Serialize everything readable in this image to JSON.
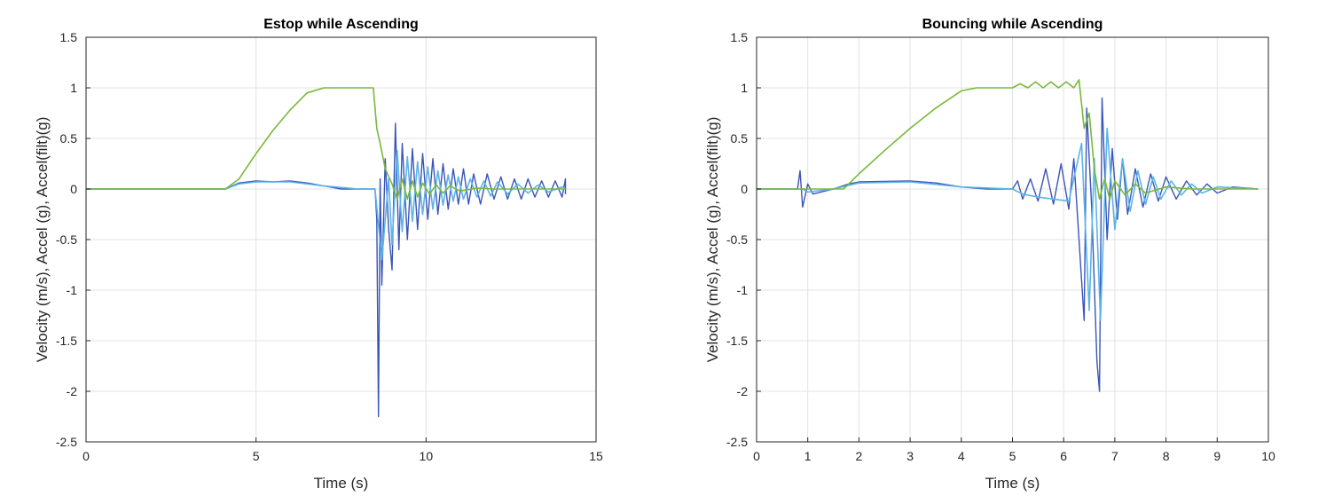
{
  "colors": {
    "raw_accel": "#3a55b8",
    "filtered_accel": "#5ab4e8",
    "velocity": "#7ab83a"
  },
  "chart_data": [
    {
      "type": "line",
      "title": "Estop while Ascending",
      "xlabel": "Time (s)",
      "ylabel": "Velocity (m/s), Accel (g), Accel(filt)(g)",
      "xlim": [
        0,
        15
      ],
      "ylim": [
        -2.5,
        1.5
      ],
      "xticks": [
        0,
        5,
        10,
        15
      ],
      "xtick_labels": [
        "0",
        "5",
        "10",
        "15"
      ],
      "yticks": [
        -2.5,
        -2,
        -1.5,
        -1,
        -0.5,
        0,
        0.5,
        1,
        1.5
      ],
      "ytick_labels": [
        "-2.5",
        "-2",
        "-1.5",
        "-1",
        "-0.5",
        "0",
        "0.5",
        "1",
        "1.5"
      ],
      "grid": true,
      "series": [
        {
          "color_key": "raw_accel",
          "points": [
            [
              0,
              0
            ],
            [
              4.1,
              0
            ],
            [
              4.5,
              0.06
            ],
            [
              5.0,
              0.08
            ],
            [
              5.5,
              0.07
            ],
            [
              6.0,
              0.08
            ],
            [
              6.5,
              0.06
            ],
            [
              7.0,
              0.03
            ],
            [
              7.5,
              0.0
            ],
            [
              8.0,
              0.0
            ],
            [
              8.5,
              0.0
            ],
            [
              8.55,
              -0.3
            ],
            [
              8.6,
              -2.25
            ],
            [
              8.65,
              0.1
            ],
            [
              8.7,
              -0.95
            ],
            [
              8.8,
              0.3
            ],
            [
              8.9,
              -0.4
            ],
            [
              9.0,
              -0.8
            ],
            [
              9.1,
              0.65
            ],
            [
              9.2,
              -0.6
            ],
            [
              9.3,
              0.45
            ],
            [
              9.45,
              -0.5
            ],
            [
              9.6,
              0.4
            ],
            [
              9.75,
              -0.4
            ],
            [
              9.9,
              0.35
            ],
            [
              10.05,
              -0.3
            ],
            [
              10.2,
              0.3
            ],
            [
              10.35,
              -0.25
            ],
            [
              10.5,
              0.25
            ],
            [
              10.65,
              -0.2
            ],
            [
              10.8,
              0.2
            ],
            [
              10.95,
              -0.15
            ],
            [
              11.1,
              0.2
            ],
            [
              11.25,
              -0.15
            ],
            [
              11.4,
              0.15
            ],
            [
              11.6,
              -0.15
            ],
            [
              11.8,
              0.15
            ],
            [
              12.0,
              -0.1
            ],
            [
              12.2,
              0.12
            ],
            [
              12.4,
              -0.1
            ],
            [
              12.6,
              0.1
            ],
            [
              12.8,
              -0.1
            ],
            [
              13.0,
              0.1
            ],
            [
              13.2,
              -0.08
            ],
            [
              13.4,
              0.08
            ],
            [
              13.6,
              -0.08
            ],
            [
              13.8,
              0.08
            ],
            [
              14.0,
              -0.08
            ],
            [
              14.1,
              0.1
            ],
            [
              14.1,
              -0.05
            ]
          ]
        },
        {
          "color_key": "filtered_accel",
          "points": [
            [
              0,
              0
            ],
            [
              4.1,
              0
            ],
            [
              4.5,
              0.05
            ],
            [
              5.0,
              0.07
            ],
            [
              6.0,
              0.07
            ],
            [
              7.0,
              0.03
            ],
            [
              8.0,
              0.0
            ],
            [
              8.5,
              0.0
            ],
            [
              8.7,
              -0.7
            ],
            [
              8.9,
              0.1
            ],
            [
              9.0,
              -0.55
            ],
            [
              9.15,
              0.38
            ],
            [
              9.3,
              -0.42
            ],
            [
              9.45,
              0.32
            ],
            [
              9.6,
              -0.32
            ],
            [
              9.75,
              0.27
            ],
            [
              9.9,
              -0.25
            ],
            [
              10.05,
              0.22
            ],
            [
              10.2,
              -0.2
            ],
            [
              10.35,
              0.18
            ],
            [
              10.5,
              -0.16
            ],
            [
              10.65,
              0.14
            ],
            [
              10.8,
              -0.12
            ],
            [
              10.95,
              0.12
            ],
            [
              11.1,
              -0.1
            ],
            [
              11.3,
              0.1
            ],
            [
              11.5,
              -0.08
            ],
            [
              11.7,
              0.08
            ],
            [
              11.9,
              -0.07
            ],
            [
              12.1,
              0.07
            ],
            [
              12.4,
              -0.05
            ],
            [
              12.7,
              0.05
            ],
            [
              13.0,
              -0.04
            ],
            [
              13.3,
              0.04
            ],
            [
              13.6,
              -0.03
            ],
            [
              14.0,
              0.02
            ],
            [
              14.1,
              0.0
            ]
          ]
        },
        {
          "color_key": "velocity",
          "points": [
            [
              0,
              0
            ],
            [
              4.1,
              0
            ],
            [
              4.5,
              0.1
            ],
            [
              5.0,
              0.35
            ],
            [
              5.5,
              0.58
            ],
            [
              6.0,
              0.78
            ],
            [
              6.5,
              0.95
            ],
            [
              7.0,
              1.0
            ],
            [
              8.0,
              1.0
            ],
            [
              8.45,
              1.0
            ],
            [
              8.55,
              0.6
            ],
            [
              8.65,
              0.45
            ],
            [
              8.8,
              0.2
            ],
            [
              9.0,
              0.05
            ],
            [
              9.15,
              -0.1
            ],
            [
              9.3,
              0.1
            ],
            [
              9.45,
              -0.1
            ],
            [
              9.6,
              0.08
            ],
            [
              9.75,
              -0.08
            ],
            [
              9.9,
              0.06
            ],
            [
              10.1,
              -0.05
            ],
            [
              10.3,
              0.04
            ],
            [
              10.5,
              -0.04
            ],
            [
              10.7,
              0.03
            ],
            [
              11.0,
              -0.02
            ],
            [
              11.5,
              0.01
            ],
            [
              12.0,
              0.0
            ],
            [
              14.1,
              0.0
            ]
          ]
        }
      ]
    },
    {
      "type": "line",
      "title": "Bouncing while Ascending",
      "xlabel": "Time (s)",
      "ylabel": "Velocity (m/s), Accel (g), Accel(filt)(g)",
      "xlim": [
        0,
        10
      ],
      "ylim": [
        -2.5,
        1.5
      ],
      "xticks": [
        0,
        1,
        2,
        3,
        4,
        5,
        6,
        7,
        8,
        9,
        10
      ],
      "xtick_labels": [
        "0",
        "1",
        "2",
        "3",
        "4",
        "5",
        "6",
        "7",
        "8",
        "9",
        "10"
      ],
      "yticks": [
        -2.5,
        -2,
        -1.5,
        -1,
        -0.5,
        0,
        0.5,
        1,
        1.5
      ],
      "ytick_labels": [
        "-2.5",
        "-2",
        "-1.5",
        "-1",
        "-0.5",
        "0",
        "0.5",
        "1",
        "1.5"
      ],
      "grid": true,
      "series": [
        {
          "color_key": "raw_accel",
          "points": [
            [
              0,
              0
            ],
            [
              0.8,
              0
            ],
            [
              0.85,
              0.18
            ],
            [
              0.9,
              -0.18
            ],
            [
              1.0,
              0.05
            ],
            [
              1.1,
              -0.05
            ],
            [
              1.5,
              0.0
            ],
            [
              1.8,
              0.05
            ],
            [
              2.0,
              0.07
            ],
            [
              3.0,
              0.08
            ],
            [
              3.5,
              0.06
            ],
            [
              4.0,
              0.02
            ],
            [
              4.5,
              0.0
            ],
            [
              5.0,
              0.0
            ],
            [
              5.1,
              0.08
            ],
            [
              5.2,
              -0.1
            ],
            [
              5.35,
              0.1
            ],
            [
              5.5,
              -0.12
            ],
            [
              5.65,
              0.2
            ],
            [
              5.8,
              -0.15
            ],
            [
              5.95,
              0.25
            ],
            [
              6.1,
              -0.2
            ],
            [
              6.2,
              0.3
            ],
            [
              6.3,
              -0.5
            ],
            [
              6.4,
              -1.3
            ],
            [
              6.45,
              0.8
            ],
            [
              6.55,
              -0.2
            ],
            [
              6.65,
              -1.7
            ],
            [
              6.7,
              -2.0
            ],
            [
              6.75,
              0.9
            ],
            [
              6.85,
              -0.5
            ],
            [
              6.95,
              0.4
            ],
            [
              7.05,
              -0.3
            ],
            [
              7.15,
              0.3
            ],
            [
              7.25,
              -0.25
            ],
            [
              7.4,
              0.2
            ],
            [
              7.55,
              -0.18
            ],
            [
              7.7,
              0.15
            ],
            [
              7.85,
              -0.12
            ],
            [
              8.0,
              0.12
            ],
            [
              8.2,
              -0.1
            ],
            [
              8.4,
              0.08
            ],
            [
              8.6,
              -0.06
            ],
            [
              8.8,
              0.05
            ],
            [
              9.0,
              -0.04
            ],
            [
              9.3,
              0.02
            ],
            [
              9.8,
              0.0
            ]
          ]
        },
        {
          "color_key": "filtered_accel",
          "points": [
            [
              0,
              0
            ],
            [
              0.9,
              0
            ],
            [
              1.0,
              -0.03
            ],
            [
              1.5,
              0.0
            ],
            [
              2.0,
              0.06
            ],
            [
              3.0,
              0.07
            ],
            [
              4.0,
              0.02
            ],
            [
              5.0,
              0.0
            ],
            [
              5.2,
              -0.05
            ],
            [
              5.5,
              -0.08
            ],
            [
              5.8,
              -0.1
            ],
            [
              6.1,
              -0.12
            ],
            [
              6.35,
              0.45
            ],
            [
              6.5,
              -1.2
            ],
            [
              6.6,
              0.3
            ],
            [
              6.72,
              -1.3
            ],
            [
              6.85,
              0.6
            ],
            [
              7.0,
              -0.4
            ],
            [
              7.15,
              0.3
            ],
            [
              7.3,
              -0.22
            ],
            [
              7.45,
              0.18
            ],
            [
              7.6,
              -0.15
            ],
            [
              7.75,
              0.12
            ],
            [
              7.9,
              -0.1
            ],
            [
              8.1,
              0.08
            ],
            [
              8.3,
              -0.06
            ],
            [
              8.5,
              0.05
            ],
            [
              8.7,
              -0.04
            ],
            [
              9.0,
              0.02
            ],
            [
              9.8,
              0.0
            ]
          ]
        },
        {
          "color_key": "velocity",
          "points": [
            [
              0,
              0
            ],
            [
              1.7,
              0
            ],
            [
              2.0,
              0.15
            ],
            [
              2.5,
              0.38
            ],
            [
              3.0,
              0.6
            ],
            [
              3.5,
              0.8
            ],
            [
              4.0,
              0.97
            ],
            [
              4.3,
              1.0
            ],
            [
              5.0,
              1.0
            ],
            [
              5.15,
              1.04
            ],
            [
              5.3,
              1.0
            ],
            [
              5.45,
              1.06
            ],
            [
              5.6,
              1.0
            ],
            [
              5.75,
              1.06
            ],
            [
              5.9,
              1.0
            ],
            [
              6.05,
              1.06
            ],
            [
              6.2,
              1.0
            ],
            [
              6.3,
              1.08
            ],
            [
              6.4,
              0.6
            ],
            [
              6.5,
              0.75
            ],
            [
              6.6,
              0.2
            ],
            [
              6.7,
              -0.1
            ],
            [
              6.8,
              0.1
            ],
            [
              6.9,
              -0.1
            ],
            [
              7.0,
              0.08
            ],
            [
              7.2,
              -0.06
            ],
            [
              7.4,
              0.05
            ],
            [
              7.6,
              -0.04
            ],
            [
              8.0,
              0.02
            ],
            [
              8.5,
              0.0
            ],
            [
              9.8,
              0.0
            ]
          ]
        }
      ]
    }
  ]
}
